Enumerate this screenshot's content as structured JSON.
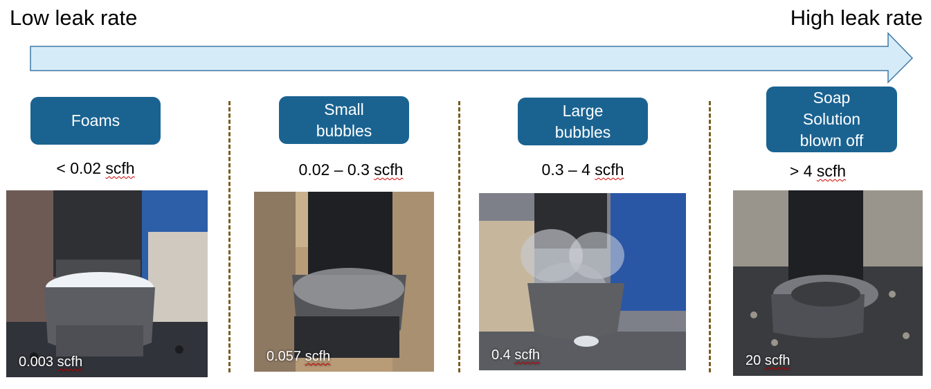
{
  "scale": {
    "low_label": "Low leak rate",
    "high_label": "High leak rate",
    "arrow_color": "#d6ebf8"
  },
  "categories": [
    {
      "label_lines": [
        "Foams"
      ],
      "range": "< 0.02 ",
      "range_unit": "scfh",
      "photo_value": "0.003 ",
      "photo_unit": "scfh",
      "photo_content": "pipe-fitting-with-foam"
    },
    {
      "label_lines": [
        "Small",
        "bubbles"
      ],
      "range": "0.02 – 0.3 ",
      "range_unit": "scfh",
      "photo_value": "0.057 ",
      "photo_unit": "scfh",
      "photo_content": "pipe-fitting-with-small-bubbles"
    },
    {
      "label_lines": [
        "Large",
        "bubbles"
      ],
      "range": "0.3 – 4 ",
      "range_unit": "scfh",
      "photo_value": "0.4 ",
      "photo_unit": "scfh",
      "photo_content": "pipe-fitting-with-large-bubbles"
    },
    {
      "label_lines": [
        "Soap",
        "Solution",
        "blown off"
      ],
      "range": "> 4 ",
      "range_unit": "scfh",
      "photo_value": "20 ",
      "photo_unit": "scfh",
      "photo_content": "pipe-fitting-soap-blown-off"
    }
  ],
  "colors": {
    "pill": "#1a6391",
    "divider": "#7a5c1e"
  }
}
